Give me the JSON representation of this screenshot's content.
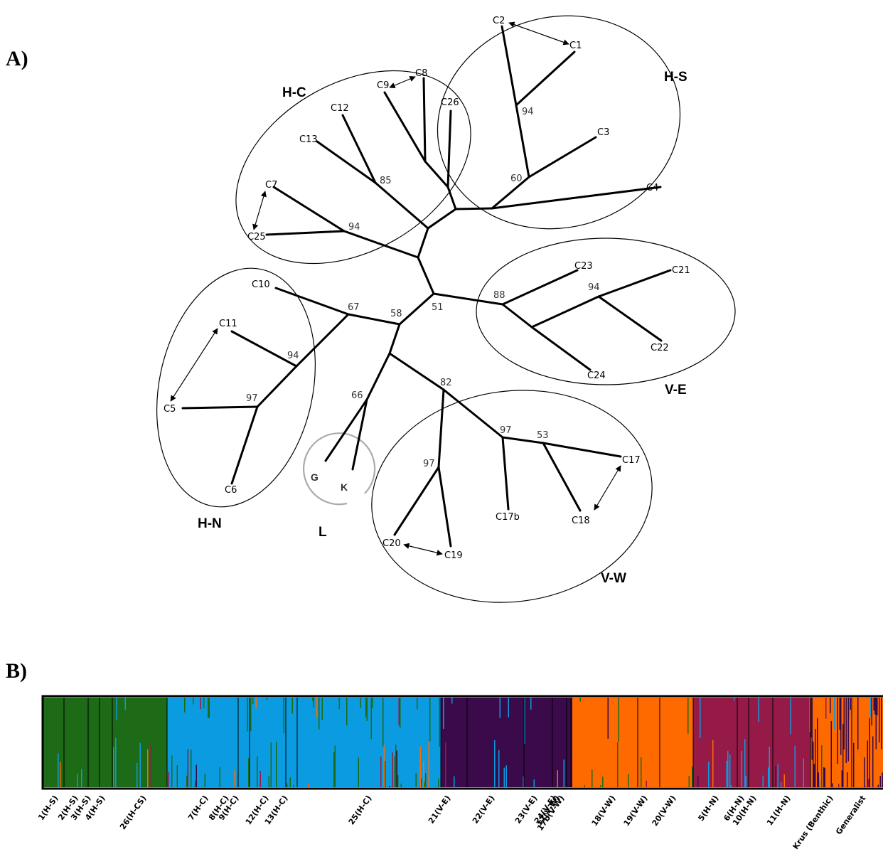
{
  "panel_a": {
    "label": "A)",
    "clades": [
      {
        "id": "hs",
        "label": "H-S"
      },
      {
        "id": "hc",
        "label": "H-C"
      },
      {
        "id": "ve",
        "label": "V-E"
      },
      {
        "id": "hn",
        "label": "H-N"
      },
      {
        "id": "vw",
        "label": "V-W"
      },
      {
        "id": "l",
        "label": "L"
      }
    ],
    "leaves": [
      "C1",
      "C2",
      "C3",
      "C4",
      "C26",
      "C8",
      "C9",
      "C12",
      "C13",
      "C7",
      "C25",
      "C23",
      "C21",
      "C22",
      "C24",
      "C10",
      "C11",
      "C5",
      "C6",
      "C17",
      "C18",
      "C17b",
      "C20",
      "C19",
      "G",
      "K"
    ],
    "bootstrap": [
      "94",
      "60",
      "85",
      "94",
      "88",
      "94",
      "51",
      "58",
      "67",
      "94",
      "97",
      "66",
      "82",
      "97",
      "53",
      "97"
    ]
  },
  "panel_b": {
    "label": "B)",
    "colors": {
      "green": "#1d6b16",
      "blue": "#0b9be0",
      "purple": "#3a0a4a",
      "orange": "#ff6a00",
      "magenta": "#951a48"
    },
    "populations": [
      "1(H-S)",
      "2(H-S)",
      "3(H-S)",
      "4(H-S)",
      "26(H-CS)",
      "7(H-C)",
      "8(H-C)",
      "9(H-C)",
      "12(H-C)",
      "13(H-C)",
      "25(H-C)",
      "21(V-E)",
      "22(V-E)",
      "23(V-E)",
      "24(V-E)",
      "17(V-W)",
      "17b(V-W)",
      "18(V-W)",
      "19(V-W)",
      "20(V-W)",
      "5(H-N)",
      "6(H-N)",
      "10(H-N)",
      "11(H-N)",
      "Krus (Benthic)",
      "Generalist"
    ]
  }
}
